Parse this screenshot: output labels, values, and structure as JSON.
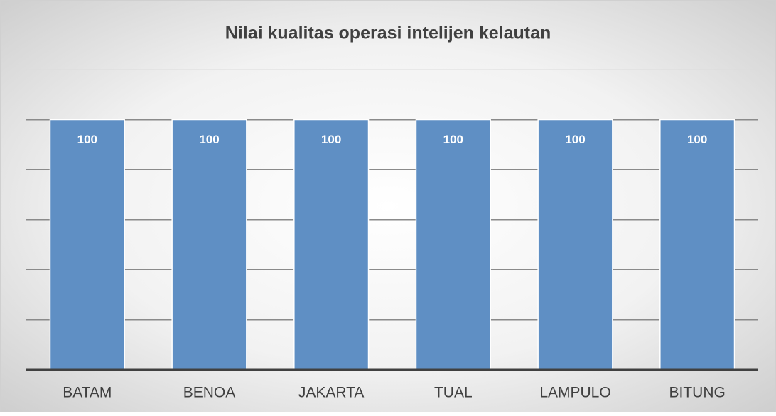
{
  "chart_data": {
    "type": "bar",
    "title": "Nilai kualitas operasi intelijen kelautan",
    "categories": [
      "BATAM",
      "BENOA",
      "JAKARTA",
      "TUAL",
      "LAMPULO",
      "BITUNG"
    ],
    "values": [
      100,
      100,
      100,
      100,
      100,
      100
    ],
    "color": "#5f8fc4",
    "ylim": [
      0,
      120
    ],
    "yticks": [
      0,
      20,
      40,
      60,
      80,
      100,
      120
    ],
    "grid": true
  }
}
